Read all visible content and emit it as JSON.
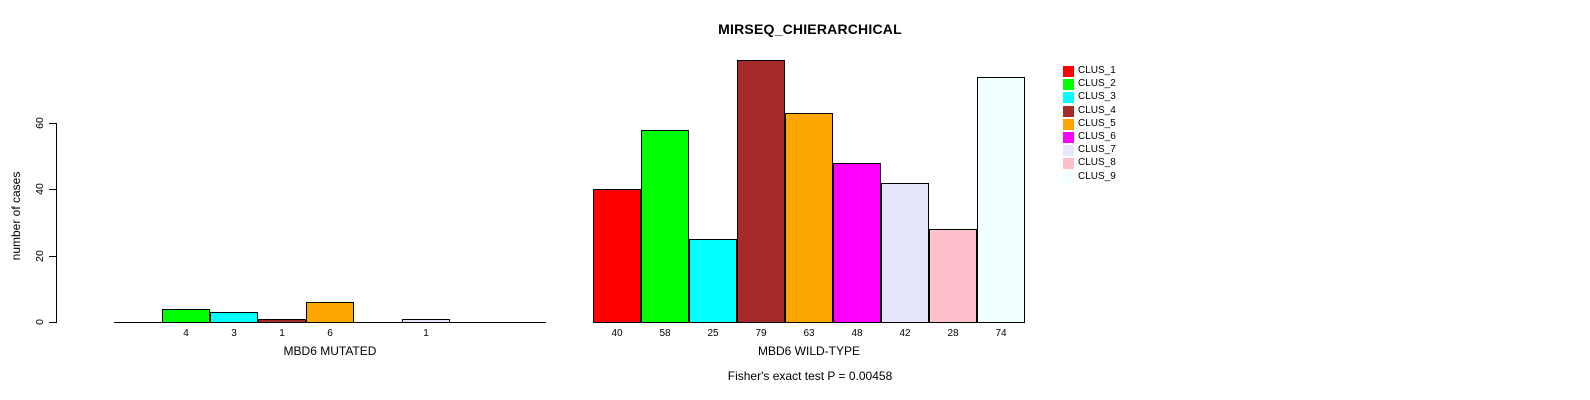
{
  "title": "MIRSEQ_CHIERARCHICAL",
  "chart_data": {
    "type": "bar",
    "title": "MIRSEQ_CHIERARCHICAL",
    "ylabel": "number of cases",
    "yticks": [
      0,
      20,
      40,
      60
    ],
    "ylim": [
      0,
      79
    ],
    "grid": false,
    "legend_position": "right",
    "categories": [
      "CLUS_1",
      "CLUS_2",
      "CLUS_3",
      "CLUS_4",
      "CLUS_5",
      "CLUS_6",
      "CLUS_7",
      "CLUS_8",
      "CLUS_9"
    ],
    "colors": [
      "#FF0000",
      "#00FF00",
      "#00FFFF",
      "#A52A2A",
      "#FFA500",
      "#FF00FF",
      "#E6E6FA",
      "#FFC0CB",
      "#F0FFFF"
    ],
    "panels": [
      {
        "xlabel": "MBD6 MUTATED",
        "values": [
          0,
          4,
          3,
          1,
          6,
          0,
          1,
          0,
          0
        ]
      },
      {
        "xlabel": "MBD6 WILD-TYPE",
        "values": [
          40,
          58,
          25,
          79,
          63,
          48,
          42,
          28,
          74
        ]
      }
    ],
    "annotation": "Fisher's exact test P = 0.00458"
  }
}
